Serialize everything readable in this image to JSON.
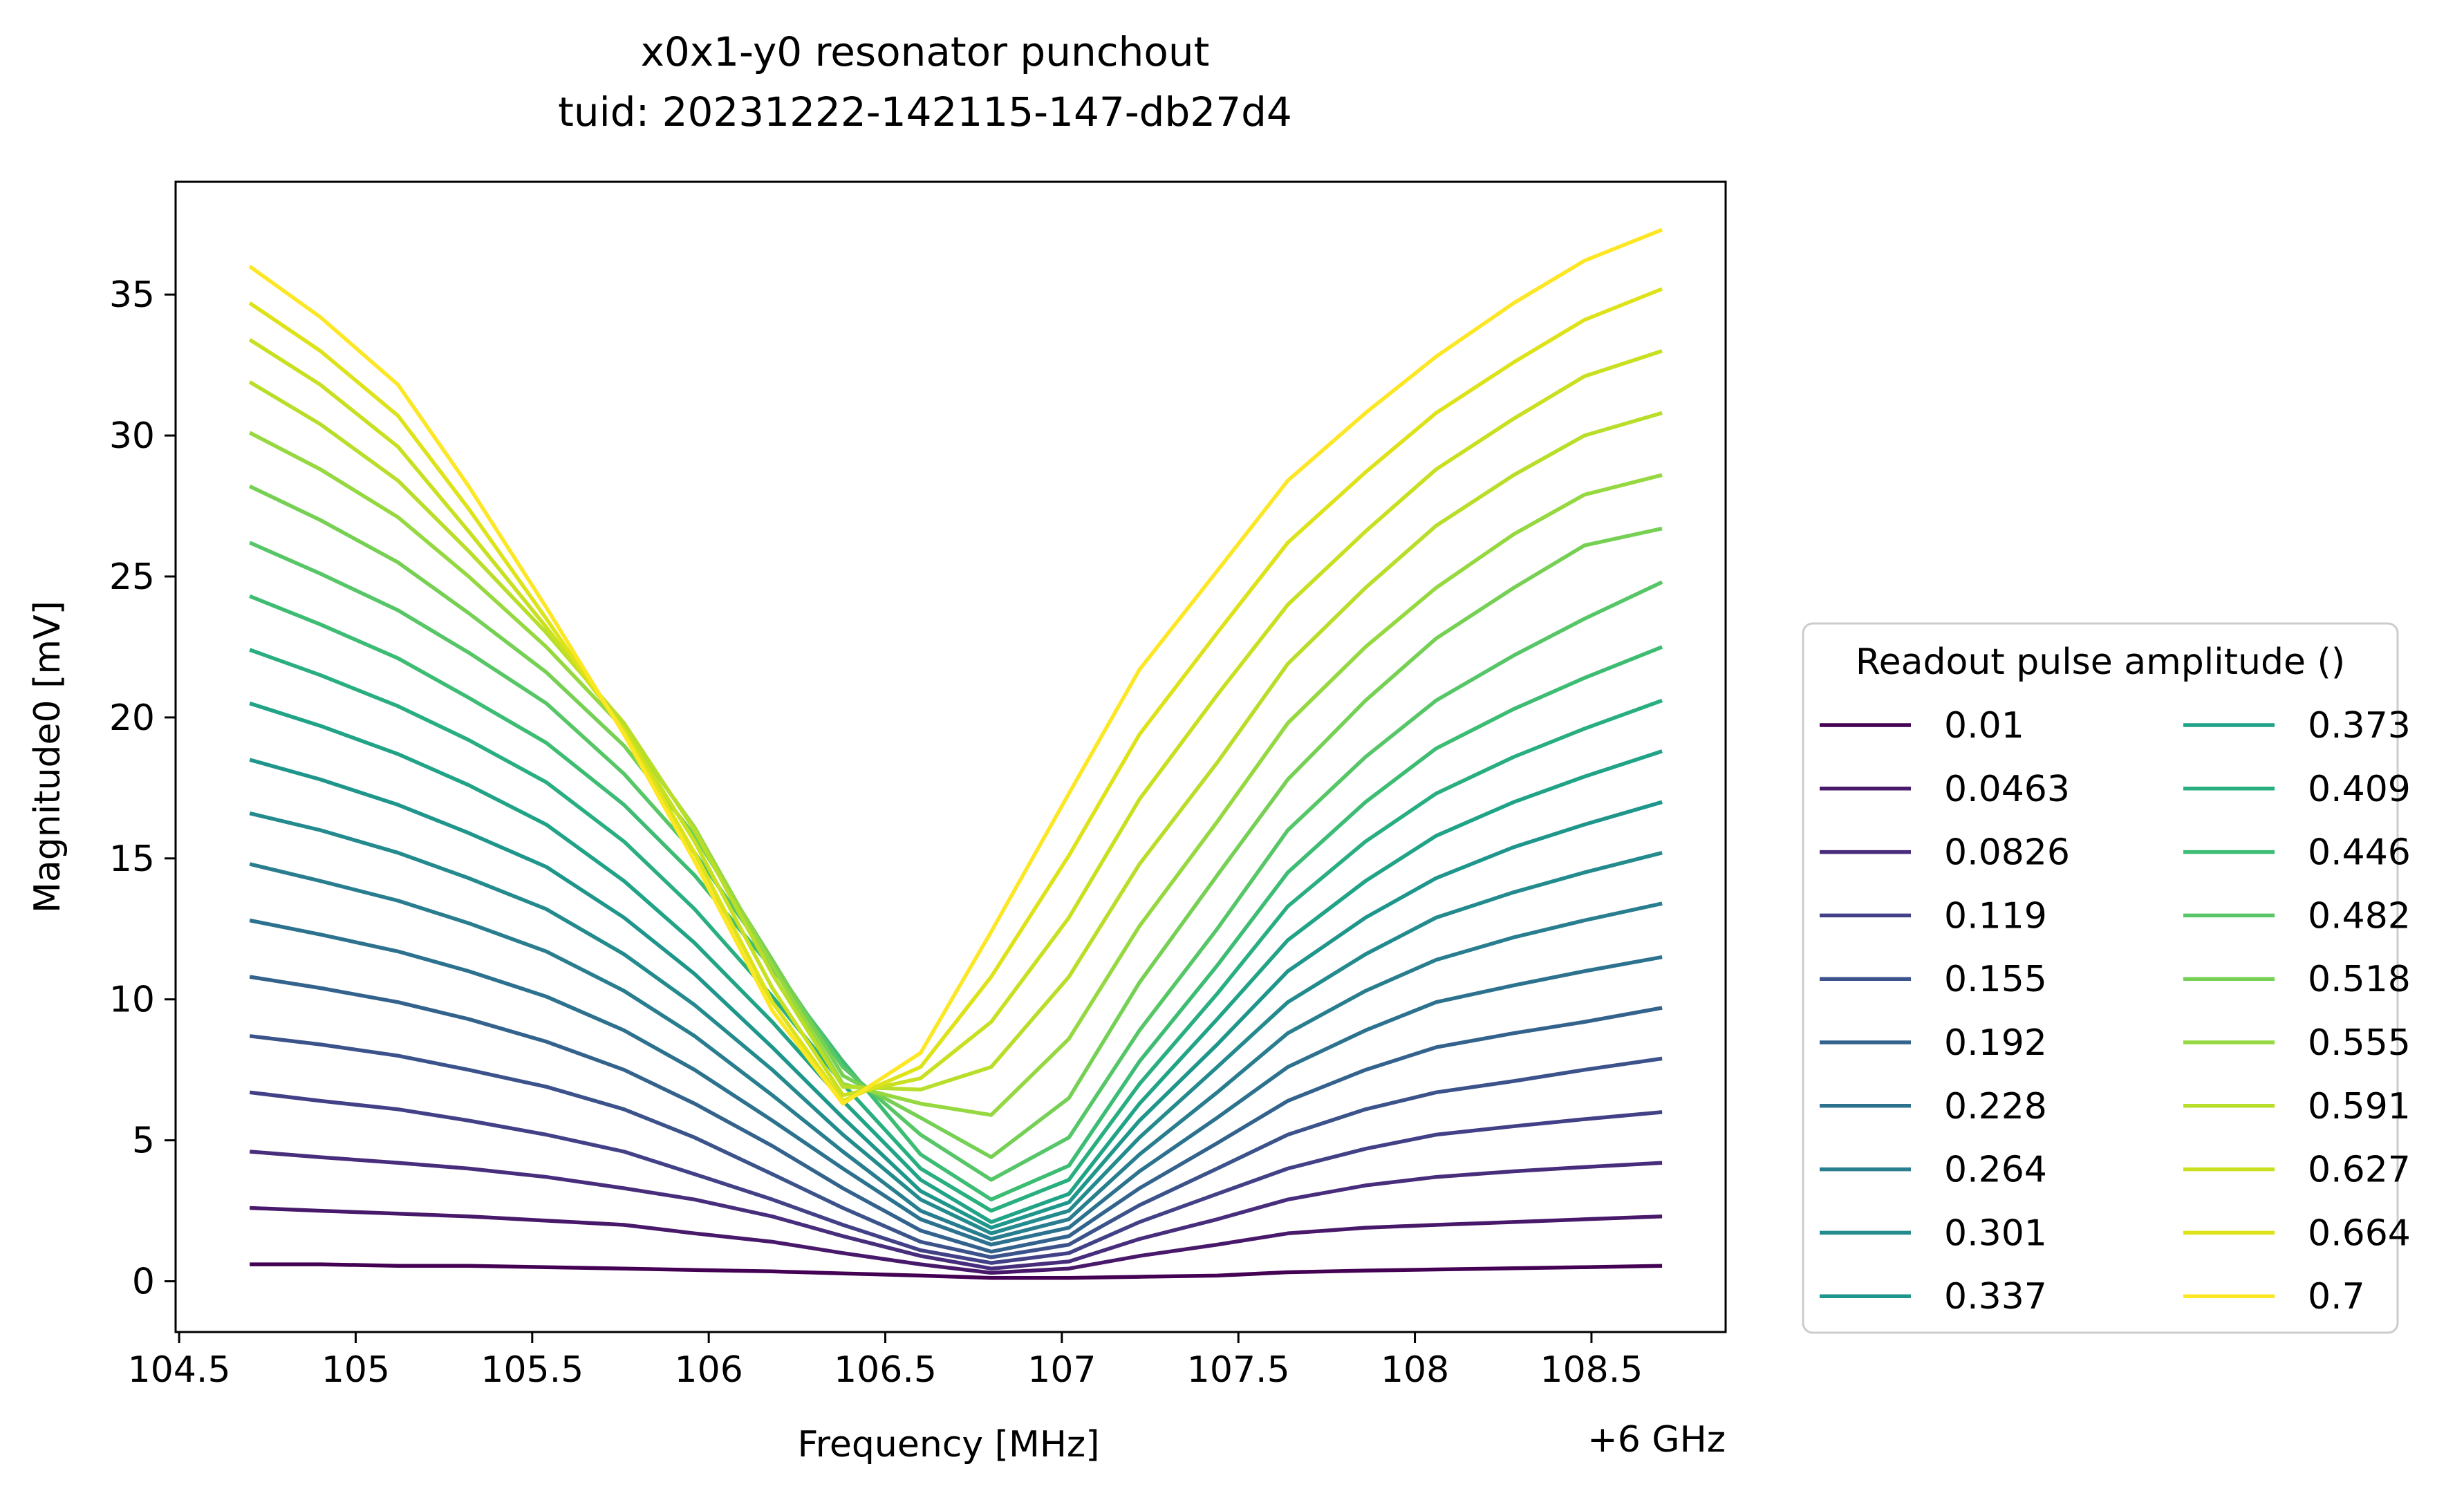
{
  "chart_data": {
    "type": "line",
    "title": "x0x1-y0 resonator punchout",
    "subtitle": "tuid: 20231222-142115-147-db27d4",
    "xlabel": "Frequency [MHz]",
    "x_offset_label": "+6 GHz",
    "ylabel": "Magnitude0 [mV]",
    "xlim": [
      104.49,
      108.88
    ],
    "ylim": [
      -1.8,
      39.0
    ],
    "x_ticks": [
      "104.5",
      "105",
      "105.5",
      "106",
      "106.5",
      "107",
      "107.5",
      "108",
      "108.5"
    ],
    "y_ticks": [
      "0",
      "5",
      "10",
      "15",
      "20",
      "25",
      "30",
      "35"
    ],
    "grid": false,
    "legend_title": "Readout pulse amplitude ()",
    "legend_placement": "right, lower",
    "legend_columns": 2,
    "x": [
      104.7,
      104.9,
      105.12,
      105.32,
      105.54,
      105.76,
      105.96,
      106.18,
      106.38,
      106.6,
      106.8,
      107.02,
      107.22,
      107.44,
      107.64,
      107.86,
      108.06,
      108.28,
      108.48,
      108.7
    ],
    "series": [
      {
        "name": "0.01",
        "color": "#440154",
        "values": [
          0.6,
          0.6,
          0.55,
          0.55,
          0.5,
          0.45,
          0.4,
          0.35,
          0.28,
          0.2,
          0.12,
          0.12,
          0.16,
          0.2,
          0.32,
          0.38,
          0.42,
          0.46,
          0.5,
          0.55
        ]
      },
      {
        "name": "0.0463",
        "color": "#48186a",
        "values": [
          2.6,
          2.5,
          2.4,
          2.3,
          2.15,
          2.0,
          1.7,
          1.4,
          1.0,
          0.6,
          0.3,
          0.45,
          0.9,
          1.3,
          1.7,
          1.9,
          2.0,
          2.1,
          2.2,
          2.3
        ]
      },
      {
        "name": "0.0826",
        "color": "#472d7b",
        "values": [
          4.6,
          4.4,
          4.2,
          4.0,
          3.7,
          3.3,
          2.9,
          2.3,
          1.6,
          0.9,
          0.45,
          0.7,
          1.5,
          2.2,
          2.9,
          3.4,
          3.7,
          3.9,
          4.05,
          4.2
        ]
      },
      {
        "name": "0.119",
        "color": "#424086",
        "values": [
          6.7,
          6.4,
          6.1,
          5.7,
          5.2,
          4.6,
          3.8,
          2.9,
          2.0,
          1.1,
          0.65,
          1.0,
          2.1,
          3.1,
          4.0,
          4.7,
          5.2,
          5.5,
          5.75,
          6.0
        ]
      },
      {
        "name": "0.155",
        "color": "#3b528b",
        "values": [
          8.7,
          8.4,
          8.0,
          7.5,
          6.9,
          6.1,
          5.1,
          3.8,
          2.6,
          1.4,
          0.85,
          1.3,
          2.7,
          4.0,
          5.2,
          6.1,
          6.7,
          7.1,
          7.5,
          7.9
        ]
      },
      {
        "name": "0.192",
        "color": "#33638d",
        "values": [
          10.8,
          10.4,
          9.9,
          9.3,
          8.5,
          7.5,
          6.3,
          4.8,
          3.3,
          1.8,
          1.05,
          1.6,
          3.3,
          4.9,
          6.4,
          7.5,
          8.3,
          8.8,
          9.2,
          9.7
        ]
      },
      {
        "name": "0.228",
        "color": "#2c728e",
        "values": [
          12.8,
          12.3,
          11.7,
          11.0,
          10.1,
          8.9,
          7.5,
          5.7,
          4.0,
          2.2,
          1.3,
          1.9,
          3.9,
          5.8,
          7.6,
          8.9,
          9.9,
          10.5,
          11.0,
          11.5
        ]
      },
      {
        "name": "0.264",
        "color": "#287d8e",
        "values": [
          14.8,
          14.2,
          13.5,
          12.7,
          11.7,
          10.3,
          8.7,
          6.6,
          4.6,
          2.5,
          1.5,
          2.2,
          4.5,
          6.7,
          8.8,
          10.3,
          11.4,
          12.2,
          12.8,
          13.4
        ]
      },
      {
        "name": "0.301",
        "color": "#238a8d",
        "values": [
          16.6,
          16.0,
          15.2,
          14.3,
          13.2,
          11.6,
          9.8,
          7.5,
          5.2,
          2.9,
          1.7,
          2.5,
          5.1,
          7.6,
          9.9,
          11.6,
          12.9,
          13.8,
          14.5,
          15.2
        ]
      },
      {
        "name": "0.337",
        "color": "#1f968b",
        "values": [
          18.5,
          17.8,
          16.9,
          15.9,
          14.7,
          12.9,
          10.9,
          8.3,
          5.8,
          3.2,
          1.9,
          2.8,
          5.7,
          8.4,
          11.0,
          12.9,
          14.3,
          15.4,
          16.2,
          17.0
        ]
      },
      {
        "name": "0.373",
        "color": "#20a386",
        "values": [
          20.5,
          19.7,
          18.7,
          17.6,
          16.2,
          14.2,
          12.0,
          9.2,
          6.4,
          3.6,
          2.1,
          3.1,
          6.3,
          9.3,
          12.1,
          14.2,
          15.8,
          17.0,
          17.9,
          18.8
        ]
      },
      {
        "name": "0.409",
        "color": "#29af7f",
        "values": [
          22.4,
          21.5,
          20.4,
          19.2,
          17.7,
          15.6,
          13.2,
          10.1,
          7.0,
          4.0,
          2.5,
          3.6,
          7.0,
          10.2,
          13.3,
          15.6,
          17.3,
          18.6,
          19.6,
          20.6
        ]
      },
      {
        "name": "0.446",
        "color": "#3dbc74",
        "values": [
          24.3,
          23.3,
          22.1,
          20.7,
          19.1,
          16.9,
          14.4,
          11.1,
          7.8,
          4.5,
          2.9,
          4.1,
          7.8,
          11.2,
          14.5,
          17.0,
          18.9,
          20.3,
          21.4,
          22.5
        ]
      },
      {
        "name": "0.482",
        "color": "#56c667",
        "values": [
          26.2,
          25.1,
          23.8,
          22.3,
          20.5,
          18.0,
          15.2,
          11.3,
          7.6,
          5.2,
          3.6,
          5.1,
          8.9,
          12.5,
          16.0,
          18.6,
          20.6,
          22.2,
          23.5,
          24.8
        ]
      },
      {
        "name": "0.518",
        "color": "#75d054",
        "values": [
          28.2,
          27.0,
          25.5,
          23.7,
          21.6,
          19.0,
          15.8,
          11.4,
          7.3,
          5.8,
          4.4,
          6.5,
          10.6,
          14.4,
          17.8,
          20.6,
          22.8,
          24.6,
          26.1,
          26.7
        ]
      },
      {
        "name": "0.555",
        "color": "#95d840",
        "values": [
          30.1,
          28.8,
          27.1,
          25.0,
          22.5,
          19.6,
          16.1,
          11.2,
          7.0,
          6.3,
          5.9,
          8.6,
          12.6,
          16.3,
          19.8,
          22.5,
          24.6,
          26.5,
          27.9,
          28.6
        ]
      },
      {
        "name": "0.591",
        "color": "#b8de29",
        "values": [
          31.9,
          30.4,
          28.4,
          25.9,
          23.0,
          19.8,
          16.0,
          10.9,
          6.9,
          6.8,
          7.6,
          10.8,
          14.8,
          18.4,
          21.9,
          24.6,
          26.8,
          28.6,
          30.0,
          30.8
        ]
      },
      {
        "name": "0.627",
        "color": "#c8e020",
        "values": [
          33.4,
          31.8,
          29.6,
          26.6,
          23.2,
          19.6,
          15.6,
          10.4,
          6.6,
          7.2,
          9.2,
          12.9,
          17.1,
          20.8,
          24.0,
          26.6,
          28.8,
          30.6,
          32.1,
          33.0
        ]
      },
      {
        "name": "0.664",
        "color": "#dde318",
        "values": [
          34.7,
          33.0,
          30.7,
          27.4,
          23.5,
          19.5,
          15.2,
          9.9,
          6.4,
          7.6,
          10.8,
          15.1,
          19.4,
          23.0,
          26.2,
          28.7,
          30.8,
          32.6,
          34.1,
          35.2
        ]
      },
      {
        "name": "0.7",
        "color": "#fde725",
        "values": [
          36.0,
          34.2,
          31.8,
          28.2,
          23.9,
          19.4,
          14.9,
          9.6,
          6.3,
          8.1,
          12.4,
          17.3,
          21.7,
          25.2,
          28.4,
          30.8,
          32.8,
          34.7,
          36.2,
          37.3
        ]
      }
    ]
  }
}
